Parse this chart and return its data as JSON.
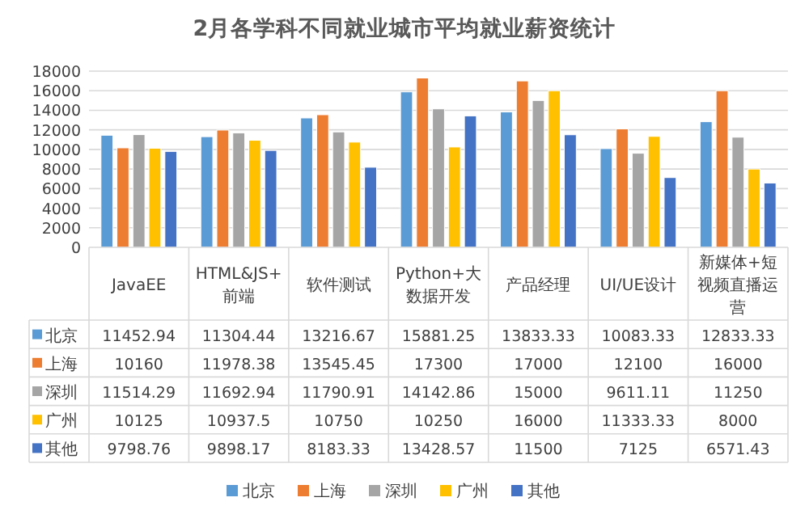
{
  "chart_data": {
    "type": "bar",
    "title": "2月各学科不同就业城市平均就业薪资统计",
    "categories": [
      "JavaEE",
      "HTML&JS+前端",
      "软件测试",
      "Python+大数据开发",
      "产品经理",
      "UI/UE设计",
      "新媒体+短视频直播运营"
    ],
    "series": [
      {
        "name": "北京",
        "color": "#5b9bd5",
        "values": [
          11452.94,
          11304.44,
          13216.67,
          15881.25,
          13833.33,
          10083.33,
          12833.33
        ]
      },
      {
        "name": "上海",
        "color": "#ed7d31",
        "values": [
          10160,
          11978.38,
          13545.45,
          17300,
          17000,
          12100,
          16000
        ]
      },
      {
        "name": "深圳",
        "color": "#a5a5a5",
        "values": [
          11514.29,
          11692.94,
          11790.91,
          14142.86,
          15000,
          9611.11,
          11250
        ]
      },
      {
        "name": "广州",
        "color": "#ffc000",
        "values": [
          10125,
          10937.5,
          10750,
          10250,
          16000,
          11333.33,
          8000
        ]
      },
      {
        "name": "其他",
        "color": "#4472c4",
        "values": [
          9798.76,
          9898.17,
          8183.33,
          13428.57,
          11500,
          7125,
          6571.43
        ]
      }
    ],
    "ylim": [
      0,
      18000
    ],
    "yticks": [
      0,
      2000,
      4000,
      6000,
      8000,
      10000,
      12000,
      14000,
      16000,
      18000
    ],
    "grid": "y",
    "legend": "bottom",
    "data_labels": true
  }
}
